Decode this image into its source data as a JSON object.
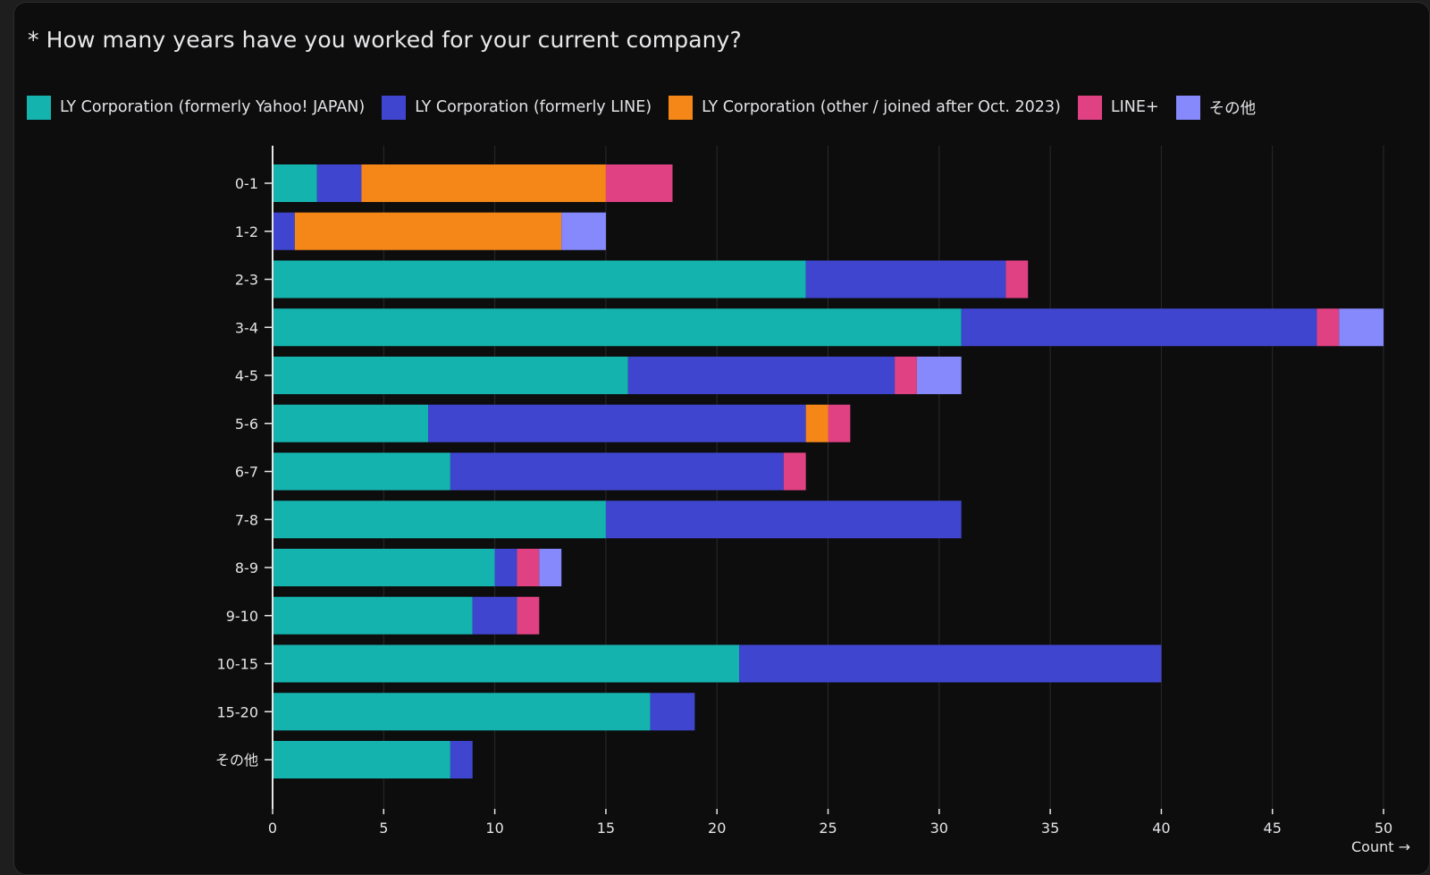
{
  "chart_data": {
    "type": "bar",
    "orientation": "horizontal",
    "stacked": true,
    "title": "* How many years have you worked for your current company?",
    "xlabel": "Count →",
    "ylabel": "",
    "xlim": [
      0,
      50
    ],
    "x_ticks": [
      "0",
      "5",
      "10",
      "15",
      "20",
      "25",
      "30",
      "35",
      "40",
      "45",
      "50"
    ],
    "grid": true,
    "legend_position": "top-left",
    "categories": [
      "0-1",
      "1-2",
      "2-3",
      "3-4",
      "4-5",
      "5-6",
      "6-7",
      "7-8",
      "8-9",
      "9-10",
      "10-15",
      "15-20",
      "その他"
    ],
    "series": [
      {
        "name": "LY Corporation (formerly Yahoo! JAPAN)",
        "color": "#14b3ad",
        "values": [
          2,
          0,
          24,
          31,
          16,
          7,
          8,
          15,
          10,
          9,
          21,
          17,
          8
        ]
      },
      {
        "name": "LY Corporation (formerly LINE)",
        "color": "#4045cf",
        "values": [
          2,
          1,
          9,
          16,
          12,
          17,
          15,
          16,
          1,
          2,
          19,
          2,
          1
        ]
      },
      {
        "name": "LY Corporation (other / joined after Oct. 2023)",
        "color": "#f58718",
        "values": [
          11,
          12,
          0,
          0,
          0,
          1,
          0,
          0,
          0,
          0,
          0,
          0,
          0
        ]
      },
      {
        "name": "LINE+",
        "color": "#df4182",
        "values": [
          3,
          0,
          1,
          1,
          1,
          1,
          1,
          0,
          1,
          1,
          0,
          0,
          0
        ]
      },
      {
        "name": "その他",
        "color": "#8589fc",
        "values": [
          0,
          2,
          0,
          2,
          2,
          0,
          0,
          0,
          1,
          0,
          0,
          0,
          0
        ]
      }
    ]
  }
}
